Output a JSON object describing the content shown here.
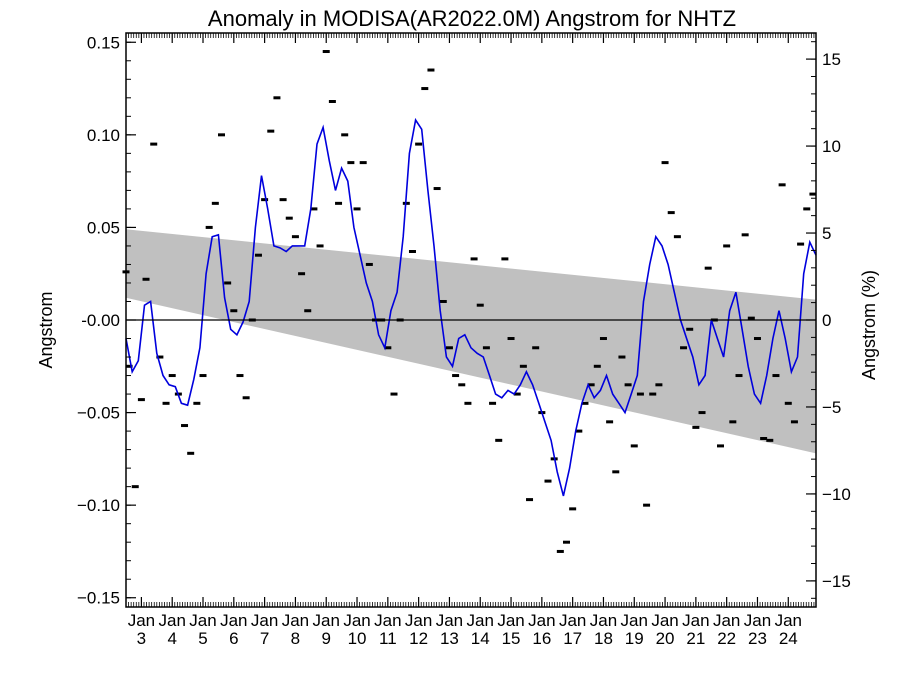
{
  "chart_data": {
    "type": "line",
    "title": "Anomaly in MODISA(AR2022.0M) Angstrom for NHTZ",
    "ylabel": "Angstrom",
    "y2label": "Angstrom (%)",
    "ylim": [
      -0.155,
      0.155
    ],
    "y2lim": [
      -16.5,
      16.5
    ],
    "xlim": [
      2002.5,
      2024.9
    ],
    "grid": false,
    "legend": "none",
    "colors": {
      "line": "#0000dd",
      "band": "#c0c0c0",
      "points": "#000000",
      "zero": "#000000"
    },
    "yticks": [
      {
        "v": 0.15,
        "label": "0.15"
      },
      {
        "v": 0.1,
        "label": "0.10"
      },
      {
        "v": 0.05,
        "label": "0.05"
      },
      {
        "v": 0.0,
        "label": "-0.00"
      },
      {
        "v": -0.05,
        "label": "−0.05"
      },
      {
        "v": -0.1,
        "label": "−0.10"
      },
      {
        "v": -0.15,
        "label": "−0.15"
      }
    ],
    "y2ticks": [
      {
        "v": 15,
        "label": "15"
      },
      {
        "v": 10,
        "label": "10"
      },
      {
        "v": 5,
        "label": "5"
      },
      {
        "v": 0,
        "label": "0"
      },
      {
        "v": -5,
        "label": "−5"
      },
      {
        "v": -10,
        "label": "−10"
      },
      {
        "v": -15,
        "label": "−15"
      }
    ],
    "xticks": [
      {
        "x": 2003,
        "month": "Jan",
        "year": "3"
      },
      {
        "x": 2004,
        "month": "Jan",
        "year": "4"
      },
      {
        "x": 2005,
        "month": "Jan",
        "year": "5"
      },
      {
        "x": 2006,
        "month": "Jan",
        "year": "6"
      },
      {
        "x": 2007,
        "month": "Jan",
        "year": "7"
      },
      {
        "x": 2008,
        "month": "Jan",
        "year": "8"
      },
      {
        "x": 2009,
        "month": "Jan",
        "year": "9"
      },
      {
        "x": 2010,
        "month": "Jan",
        "year": "10"
      },
      {
        "x": 2011,
        "month": "Jan",
        "year": "11"
      },
      {
        "x": 2012,
        "month": "Jan",
        "year": "12"
      },
      {
        "x": 2013,
        "month": "Jan",
        "year": "13"
      },
      {
        "x": 2014,
        "month": "Jan",
        "year": "14"
      },
      {
        "x": 2015,
        "month": "Jan",
        "year": "15"
      },
      {
        "x": 2016,
        "month": "Jan",
        "year": "16"
      },
      {
        "x": 2017,
        "month": "Jan",
        "year": "17"
      },
      {
        "x": 2018,
        "month": "Jan",
        "year": "18"
      },
      {
        "x": 2019,
        "month": "Jan",
        "year": "19"
      },
      {
        "x": 2020,
        "month": "Jan",
        "year": "20"
      },
      {
        "x": 2021,
        "month": "Jan",
        "year": "21"
      },
      {
        "x": 2022,
        "month": "Jan",
        "year": "22"
      },
      {
        "x": 2023,
        "month": "Jan",
        "year": "23"
      },
      {
        "x": 2024,
        "month": "Jan",
        "year": "24"
      }
    ],
    "band": {
      "x": [
        2002.5,
        2024.9
      ],
      "upper": [
        0.049,
        0.011
      ],
      "lower": [
        0.012,
        -0.072
      ]
    },
    "series": [
      {
        "x": [
          2002.5,
          2002.7,
          2002.9,
          2003.1,
          2003.3,
          2003.5,
          2003.7,
          2003.9,
          2004.1,
          2004.3,
          2004.5,
          2004.7,
          2004.9,
          2005.1,
          2005.3,
          2005.5,
          2005.7,
          2005.9,
          2006.1,
          2006.3,
          2006.5,
          2006.7,
          2006.9,
          2007.1,
          2007.3,
          2007.5,
          2007.7,
          2007.9,
          2008.1,
          2008.3,
          2008.5,
          2008.7,
          2008.9,
          2009.1,
          2009.3,
          2009.5,
          2009.7,
          2009.9,
          2010.1,
          2010.3,
          2010.5,
          2010.7,
          2010.9,
          2011.1,
          2011.3,
          2011.5,
          2011.7,
          2011.9,
          2012.1,
          2012.3,
          2012.5,
          2012.7,
          2012.9,
          2013.1,
          2013.3,
          2013.5,
          2013.7,
          2013.9,
          2014.1,
          2014.3,
          2014.5,
          2014.7,
          2014.9,
          2015.1,
          2015.3,
          2015.5,
          2015.7,
          2015.9,
          2016.1,
          2016.3,
          2016.5,
          2016.7,
          2016.9,
          2017.1,
          2017.3,
          2017.5,
          2017.7,
          2017.9,
          2018.1,
          2018.3,
          2018.5,
          2018.7,
          2018.9,
          2019.1,
          2019.3,
          2019.5,
          2019.7,
          2019.9,
          2020.1,
          2020.3,
          2020.5,
          2020.7,
          2020.9,
          2021.1,
          2021.3,
          2021.5,
          2021.7,
          2021.9,
          2022.1,
          2022.3,
          2022.5,
          2022.7,
          2022.9,
          2023.1,
          2023.3,
          2023.5,
          2023.7,
          2023.9,
          2024.1,
          2024.3,
          2024.5,
          2024.7,
          2024.9
        ],
        "y": [
          -0.01,
          -0.028,
          -0.022,
          0.008,
          0.01,
          -0.018,
          -0.03,
          -0.035,
          -0.036,
          -0.045,
          -0.046,
          -0.032,
          -0.015,
          0.025,
          0.045,
          0.046,
          0.012,
          -0.005,
          -0.008,
          -0.001,
          0.01,
          0.05,
          0.078,
          0.06,
          0.04,
          0.039,
          0.037,
          0.04,
          0.04,
          0.04,
          0.06,
          0.095,
          0.104,
          0.086,
          0.07,
          0.082,
          0.075,
          0.05,
          0.035,
          0.02,
          0.01,
          -0.008,
          -0.015,
          0.005,
          0.015,
          0.045,
          0.09,
          0.108,
          0.103,
          0.07,
          0.04,
          0.005,
          -0.02,
          -0.025,
          -0.01,
          -0.008,
          -0.015,
          -0.018,
          -0.02,
          -0.03,
          -0.04,
          -0.042,
          -0.038,
          -0.04,
          -0.035,
          -0.028,
          -0.035,
          -0.045,
          -0.055,
          -0.065,
          -0.082,
          -0.095,
          -0.08,
          -0.06,
          -0.045,
          -0.035,
          -0.042,
          -0.038,
          -0.03,
          -0.04,
          -0.045,
          -0.05,
          -0.04,
          -0.03,
          0.01,
          0.03,
          0.045,
          0.04,
          0.03,
          0.015,
          0.0,
          -0.01,
          -0.02,
          -0.035,
          -0.03,
          0.0,
          -0.01,
          -0.02,
          0.005,
          0.015,
          -0.005,
          -0.025,
          -0.04,
          -0.045,
          -0.03,
          -0.01,
          0.005,
          -0.01,
          -0.028,
          -0.02,
          0.025,
          0.042,
          0.035
        ]
      }
    ],
    "points": {
      "x": [
        2002.5,
        2002.6,
        2002.8,
        2003.0,
        2003.15,
        2003.4,
        2003.6,
        2003.8,
        2004.0,
        2004.2,
        2004.4,
        2004.6,
        2004.8,
        2005.0,
        2005.2,
        2005.4,
        2005.6,
        2005.8,
        2006.0,
        2006.2,
        2006.4,
        2006.6,
        2006.8,
        2007.0,
        2007.2,
        2007.4,
        2007.6,
        2007.8,
        2008.0,
        2008.2,
        2008.4,
        2008.6,
        2008.8,
        2009.0,
        2009.2,
        2009.4,
        2009.6,
        2009.8,
        2010.0,
        2010.2,
        2010.4,
        2010.6,
        2010.8,
        2011.0,
        2011.2,
        2011.4,
        2011.6,
        2011.8,
        2012.0,
        2012.2,
        2012.4,
        2012.6,
        2012.8,
        2013.0,
        2013.2,
        2013.4,
        2013.6,
        2013.8,
        2014.0,
        2014.2,
        2014.4,
        2014.6,
        2014.8,
        2015.0,
        2015.2,
        2015.4,
        2015.6,
        2015.8,
        2016.0,
        2016.2,
        2016.4,
        2016.6,
        2016.8,
        2017.0,
        2017.2,
        2017.4,
        2017.6,
        2017.8,
        2018.0,
        2018.2,
        2018.4,
        2018.6,
        2018.8,
        2019.0,
        2019.2,
        2019.4,
        2019.6,
        2019.8,
        2020.0,
        2020.2,
        2020.4,
        2020.6,
        2020.8,
        2021.0,
        2021.2,
        2021.4,
        2021.6,
        2021.8,
        2022.0,
        2022.2,
        2022.4,
        2022.6,
        2022.8,
        2023.0,
        2023.2,
        2023.4,
        2023.6,
        2023.8,
        2024.0,
        2024.2,
        2024.4,
        2024.6,
        2024.8
      ],
      "y": [
        0.026,
        -0.025,
        -0.09,
        -0.043,
        0.022,
        0.095,
        -0.02,
        -0.045,
        -0.03,
        -0.04,
        -0.057,
        -0.072,
        -0.045,
        -0.03,
        0.05,
        0.063,
        0.1,
        0.02,
        0.005,
        -0.03,
        -0.042,
        0.0,
        0.035,
        0.065,
        0.102,
        0.12,
        0.065,
        0.055,
        0.045,
        0.025,
        0.005,
        0.06,
        0.04,
        0.145,
        0.118,
        0.063,
        0.1,
        0.085,
        0.06,
        0.085,
        0.03,
        0.0,
        0.0,
        -0.015,
        -0.04,
        0.0,
        0.063,
        0.037,
        0.095,
        0.125,
        0.135,
        0.071,
        0.01,
        -0.015,
        -0.03,
        -0.035,
        -0.045,
        0.033,
        0.008,
        -0.015,
        -0.045,
        -0.065,
        0.033,
        -0.01,
        -0.04,
        -0.025,
        -0.097,
        -0.015,
        -0.05,
        -0.087,
        -0.075,
        -0.125,
        -0.12,
        -0.102,
        -0.06,
        -0.045,
        -0.035,
        -0.025,
        -0.01,
        -0.055,
        -0.082,
        -0.02,
        -0.035,
        -0.068,
        -0.04,
        -0.1,
        -0.04,
        -0.035,
        0.085,
        0.058,
        0.045,
        -0.015,
        -0.005,
        -0.058,
        -0.05,
        0.028,
        0.0,
        -0.068,
        0.04,
        -0.055,
        -0.03,
        0.046,
        0.001,
        -0.01,
        -0.064,
        -0.065,
        -0.03,
        0.073,
        -0.045,
        -0.055,
        0.041,
        0.06,
        0.068
      ]
    }
  }
}
